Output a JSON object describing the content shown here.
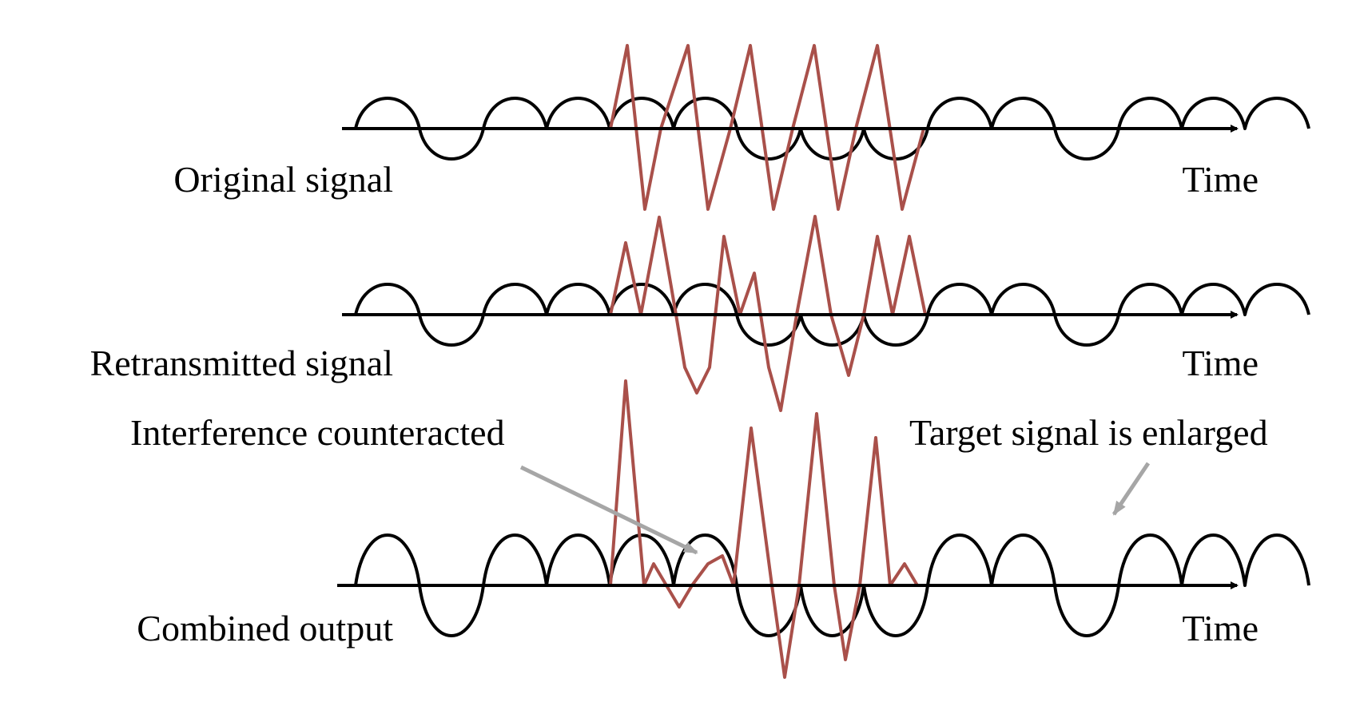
{
  "colors": {
    "target_wave": "#000000",
    "interference_wave": "#a9504a",
    "axis": "#000000",
    "annotation_arrow": "#a6a6a6"
  },
  "panels": [
    {
      "label": "Original signal",
      "axis_label": "Time"
    },
    {
      "label": "Retransmitted signal",
      "axis_label": "Time"
    },
    {
      "label": "Combined output",
      "axis_label": "Time"
    }
  ],
  "annotations": {
    "left": "Interference counteracted",
    "right": "Target signal is enlarged"
  }
}
